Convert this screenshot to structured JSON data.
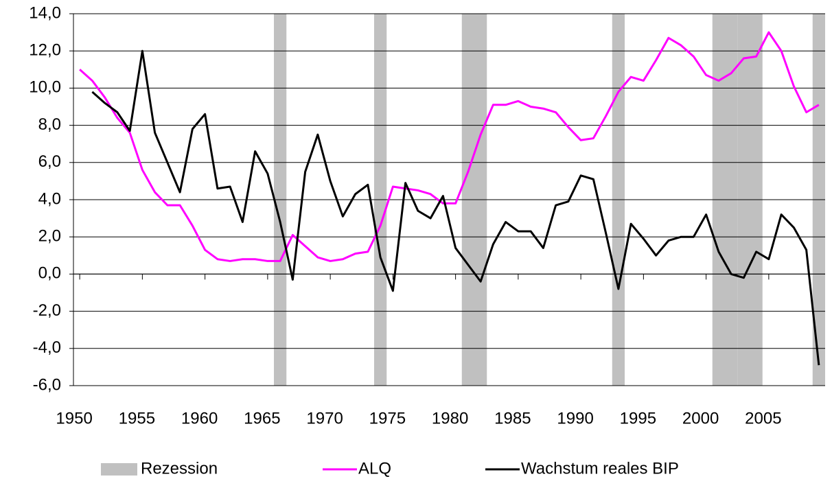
{
  "chart_data": {
    "type": "line",
    "x": [
      1950,
      1951,
      1952,
      1953,
      1954,
      1955,
      1956,
      1957,
      1958,
      1959,
      1960,
      1961,
      1962,
      1963,
      1964,
      1965,
      1966,
      1967,
      1968,
      1969,
      1970,
      1971,
      1972,
      1973,
      1974,
      1975,
      1976,
      1977,
      1978,
      1979,
      1980,
      1981,
      1982,
      1983,
      1984,
      1985,
      1986,
      1987,
      1988,
      1989,
      1990,
      1991,
      1992,
      1993,
      1994,
      1995,
      1996,
      1997,
      1998,
      1999,
      2000,
      2001,
      2002,
      2003,
      2004,
      2005,
      2006,
      2007,
      2008,
      2009
    ],
    "xlim": [
      1949.5,
      2009.5
    ],
    "xticks": [
      1950,
      1955,
      1960,
      1965,
      1970,
      1975,
      1980,
      1985,
      1990,
      1995,
      2000,
      2005
    ],
    "ylim": [
      -6,
      14
    ],
    "yticks": [
      {
        "value": -6,
        "label": "-6,0"
      },
      {
        "value": -4,
        "label": "-4,0"
      },
      {
        "value": -2,
        "label": "-2,0"
      },
      {
        "value": 0,
        "label": "0,0"
      },
      {
        "value": 2,
        "label": "2,0"
      },
      {
        "value": 4,
        "label": "4,0"
      },
      {
        "value": 6,
        "label": "6,0"
      },
      {
        "value": 8,
        "label": "8,0"
      },
      {
        "value": 10,
        "label": "10,0"
      },
      {
        "value": 12,
        "label": "12,0"
      },
      {
        "value": 14,
        "label": "14,0"
      }
    ],
    "grid": true,
    "legend": "bottom",
    "recession": {
      "name": "Rezession",
      "color": "#c0c0c0",
      "years": [
        1966,
        1974,
        1981,
        1982,
        1993,
        2001,
        2002,
        2003,
        2004,
        2009
      ]
    },
    "series": [
      {
        "name": "ALQ",
        "color": "#ff00ff",
        "values": [
          11.0,
          10.4,
          9.5,
          8.4,
          7.6,
          5.6,
          4.4,
          3.7,
          3.7,
          2.6,
          1.3,
          0.8,
          0.7,
          0.8,
          0.8,
          0.7,
          0.7,
          2.1,
          1.5,
          0.9,
          0.7,
          0.8,
          1.1,
          1.2,
          2.6,
          4.7,
          4.6,
          4.5,
          4.3,
          3.8,
          3.8,
          5.5,
          7.5,
          9.1,
          9.1,
          9.3,
          9.0,
          8.9,
          8.7,
          7.9,
          7.2,
          7.3,
          8.5,
          9.8,
          10.6,
          10.4,
          11.5,
          12.7,
          12.3,
          11.7,
          10.7,
          10.4,
          10.8,
          11.6,
          11.7,
          13.0,
          12.0,
          10.1,
          8.7,
          9.1
        ]
      },
      {
        "name": "Wachstum reales BIP",
        "color": "#000000",
        "values": [
          null,
          9.8,
          9.2,
          8.7,
          7.7,
          12.0,
          7.6,
          6.0,
          4.4,
          7.8,
          8.6,
          4.6,
          4.7,
          2.8,
          6.6,
          5.4,
          2.8,
          -0.3,
          5.5,
          7.5,
          5.0,
          3.1,
          4.3,
          4.8,
          0.9,
          -0.9,
          4.9,
          3.4,
          3.0,
          4.2,
          1.4,
          0.5,
          -0.4,
          1.6,
          2.8,
          2.3,
          2.3,
          1.4,
          3.7,
          3.9,
          5.3,
          5.1,
          2.2,
          -0.8,
          2.7,
          1.9,
          1.0,
          1.8,
          2.0,
          2.0,
          3.2,
          1.2,
          0.0,
          -0.2,
          1.2,
          0.8,
          3.2,
          2.5,
          1.3,
          -4.9
        ]
      }
    ]
  }
}
